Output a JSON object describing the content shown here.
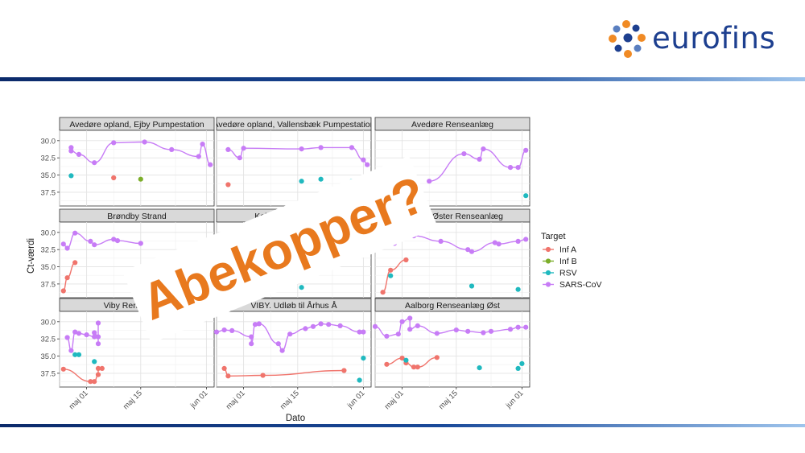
{
  "brand": {
    "name": "eurofins",
    "colors": {
      "logo_text": "#1d3f8f",
      "dot_orange": "#f08a24",
      "dot_navy": "#1d3f8f",
      "dot_blue": "#5a7fc0"
    }
  },
  "overlay_text": "Abekopper?",
  "overlay_color": "#e8791e",
  "chart_data": {
    "type": "scatter",
    "xlabel": "Dato",
    "ylabel": "Ct-værdi",
    "x_domain": [
      "2022-04-24",
      "2022-06-03"
    ],
    "xticks": [
      {
        "date": "2022-05-01",
        "label": "maj 01"
      },
      {
        "date": "2022-05-15",
        "label": "maj 15"
      },
      {
        "date": "2022-06-01",
        "label": "jun 01"
      }
    ],
    "ylim": [
      39.5,
      28.5
    ],
    "y_reversed": true,
    "yticks": [
      "30.0",
      "32.5",
      "35.0",
      "37.5"
    ],
    "legend": {
      "title": "Target",
      "placement": "right",
      "items": [
        {
          "name": "Inf A",
          "color": "#f0746c"
        },
        {
          "name": "Inf B",
          "color": "#7cae2a"
        },
        {
          "name": "RSV",
          "color": "#20b9bf"
        },
        {
          "name": "SARS-CoV",
          "color": "#c77cf6"
        }
      ]
    },
    "facets": [
      {
        "title": "Avedøre opland, Ejby Pumpestation",
        "series": [
          {
            "target": "SARS-CoV",
            "trend": true,
            "points": [
              [
                "2022-04-27",
                31.0
              ],
              [
                "2022-04-27",
                31.5
              ],
              [
                "2022-04-29",
                32.0
              ],
              [
                "2022-05-03",
                33.2
              ],
              [
                "2022-05-08",
                30.3
              ],
              [
                "2022-05-16",
                30.2
              ],
              [
                "2022-05-23",
                31.3
              ],
              [
                "2022-05-30",
                32.3
              ],
              [
                "2022-05-31",
                30.5
              ],
              [
                "2022-06-02",
                33.5
              ]
            ]
          },
          {
            "target": "RSV",
            "trend": false,
            "points": [
              [
                "2022-04-27",
                35.1
              ]
            ]
          },
          {
            "target": "Inf A",
            "trend": false,
            "points": [
              [
                "2022-05-08",
                35.4
              ]
            ]
          },
          {
            "target": "Inf B",
            "trend": false,
            "points": [
              [
                "2022-05-15",
                35.6
              ]
            ]
          }
        ]
      },
      {
        "title": "Avedøre opland, Vallensbæk Pumpestation",
        "series": [
          {
            "target": "SARS-CoV",
            "trend": true,
            "points": [
              [
                "2022-04-27",
                31.3
              ],
              [
                "2022-04-30",
                32.5
              ],
              [
                "2022-05-01",
                31.1
              ],
              [
                "2022-05-16",
                31.2
              ],
              [
                "2022-05-21",
                31.0
              ],
              [
                "2022-05-29",
                31.0
              ],
              [
                "2022-06-01",
                32.8
              ],
              [
                "2022-06-02",
                33.5
              ]
            ]
          },
          {
            "target": "Inf A",
            "trend": false,
            "points": [
              [
                "2022-04-27",
                36.4
              ]
            ]
          },
          {
            "target": "RSV",
            "trend": false,
            "points": [
              [
                "2022-05-16",
                35.9
              ],
              [
                "2022-05-21",
                35.6
              ],
              [
                "2022-05-29",
                35.9
              ]
            ]
          }
        ]
      },
      {
        "title": "Avedøre Renseanlæg",
        "series": [
          {
            "target": "SARS-CoV",
            "trend": true,
            "points": [
              [
                "2022-05-08",
                35.9
              ],
              [
                "2022-05-17",
                31.9
              ],
              [
                "2022-05-21",
                32.7
              ],
              [
                "2022-05-22",
                31.2
              ],
              [
                "2022-05-29",
                33.9
              ],
              [
                "2022-05-31",
                33.9
              ],
              [
                "2022-06-02",
                31.4
              ]
            ]
          },
          {
            "target": "RSV",
            "trend": false,
            "points": [
              [
                "2022-06-02",
                38.0
              ]
            ]
          }
        ]
      },
      {
        "title": "Brøndby Strand",
        "series": [
          {
            "target": "SARS-CoV",
            "trend": true,
            "points": [
              [
                "2022-04-25",
                31.7
              ],
              [
                "2022-04-26",
                32.3
              ],
              [
                "2022-04-28",
                30.1
              ],
              [
                "2022-05-02",
                31.3
              ],
              [
                "2022-05-03",
                31.8
              ],
              [
                "2022-05-08",
                31.0
              ],
              [
                "2022-05-09",
                31.2
              ],
              [
                "2022-05-15",
                31.6
              ]
            ]
          },
          {
            "target": "Inf A",
            "trend": true,
            "points": [
              [
                "2022-04-25",
                38.5
              ],
              [
                "2022-04-26",
                36.6
              ],
              [
                "2022-04-28",
                34.4
              ]
            ]
          }
        ]
      },
      {
        "title": "Kolding Renseanlæg",
        "series": [
          {
            "target": "SARS-CoV",
            "trend": true,
            "points": []
          },
          {
            "target": "RSV",
            "trend": false,
            "points": [
              [
                "2022-05-16",
                38.0
              ]
            ]
          }
        ]
      },
      {
        "title": "Kolding Øster Renseanlæg",
        "series": [
          {
            "target": "SARS-CoV",
            "trend": true,
            "points": [
              [
                "2022-04-26",
                31.8
              ],
              [
                "2022-04-29",
                31.6
              ],
              [
                "2022-05-01",
                30.8
              ],
              [
                "2022-05-04",
                30.5
              ],
              [
                "2022-05-11",
                31.3
              ],
              [
                "2022-05-18",
                32.5
              ],
              [
                "2022-05-19",
                32.8
              ],
              [
                "2022-05-25",
                31.5
              ],
              [
                "2022-05-26",
                31.7
              ],
              [
                "2022-05-31",
                31.3
              ],
              [
                "2022-06-02",
                31.0
              ]
            ]
          },
          {
            "target": "Inf A",
            "trend": true,
            "points": [
              [
                "2022-04-26",
                38.7
              ],
              [
                "2022-04-28",
                35.5
              ],
              [
                "2022-05-02",
                34.0
              ]
            ]
          },
          {
            "target": "RSV",
            "trend": false,
            "points": [
              [
                "2022-04-28",
                36.3
              ],
              [
                "2022-05-19",
                37.8
              ],
              [
                "2022-05-31",
                38.3
              ]
            ]
          }
        ]
      },
      {
        "title": "Viby Renseanlæg",
        "series": [
          {
            "target": "SARS-CoV",
            "trend": true,
            "points": [
              [
                "2022-04-26",
                32.3
              ],
              [
                "2022-04-28",
                31.5
              ],
              [
                "2022-04-29",
                31.7
              ],
              [
                "2022-05-01",
                31.9
              ],
              [
                "2022-05-03",
                32.2
              ],
              [
                "2022-05-03",
                31.6
              ],
              [
                "2022-05-04",
                32.2
              ],
              [
                "2022-05-04",
                30.2
              ],
              [
                "2022-05-04",
                33.2
              ],
              [
                "2022-04-27",
                34.2
              ]
            ]
          },
          {
            "target": "RSV",
            "trend": false,
            "points": [
              [
                "2022-04-28",
                34.8
              ],
              [
                "2022-04-29",
                34.8
              ],
              [
                "2022-05-03",
                35.8
              ]
            ]
          },
          {
            "target": "Inf A",
            "trend": true,
            "points": [
              [
                "2022-04-25",
                36.9
              ],
              [
                "2022-05-02",
                38.7
              ],
              [
                "2022-05-03",
                38.7
              ],
              [
                "2022-05-04",
                37.7
              ],
              [
                "2022-05-04",
                36.8
              ],
              [
                "2022-05-05",
                36.8
              ]
            ]
          }
        ]
      },
      {
        "title": "VIBY. Udløb til Århus Å",
        "series": [
          {
            "target": "SARS-CoV",
            "trend": true,
            "points": [
              [
                "2022-04-24",
                31.5
              ],
              [
                "2022-04-26",
                31.2
              ],
              [
                "2022-04-28",
                31.3
              ],
              [
                "2022-05-03",
                32.2
              ],
              [
                "2022-05-03",
                33.2
              ],
              [
                "2022-05-04",
                30.4
              ],
              [
                "2022-05-05",
                30.3
              ],
              [
                "2022-05-10",
                33.2
              ],
              [
                "2022-05-11",
                34.2
              ],
              [
                "2022-05-13",
                31.8
              ],
              [
                "2022-05-17",
                31.0
              ],
              [
                "2022-05-19",
                30.7
              ],
              [
                "2022-05-21",
                30.3
              ],
              [
                "2022-05-23",
                30.4
              ],
              [
                "2022-05-26",
                30.6
              ],
              [
                "2022-05-31",
                31.5
              ],
              [
                "2022-06-01",
                31.5
              ]
            ]
          },
          {
            "target": "Inf A",
            "trend": true,
            "points": [
              [
                "2022-04-26",
                36.8
              ],
              [
                "2022-04-27",
                37.9
              ],
              [
                "2022-05-06",
                37.8
              ],
              [
                "2022-05-27",
                37.1
              ]
            ]
          },
          {
            "target": "RSV",
            "trend": false,
            "points": [
              [
                "2022-05-31",
                38.5
              ],
              [
                "2022-06-01",
                35.3
              ]
            ]
          }
        ]
      },
      {
        "title": "Aalborg Renseanlæg Øst",
        "series": [
          {
            "target": "SARS-CoV",
            "trend": true,
            "points": [
              [
                "2022-04-24",
                30.7
              ],
              [
                "2022-04-27",
                32.1
              ],
              [
                "2022-04-30",
                31.8
              ],
              [
                "2022-05-01",
                30.0
              ],
              [
                "2022-05-03",
                29.5
              ],
              [
                "2022-05-03",
                31.1
              ],
              [
                "2022-05-05",
                30.6
              ],
              [
                "2022-05-10",
                31.7
              ],
              [
                "2022-05-15",
                31.2
              ],
              [
                "2022-05-18",
                31.4
              ],
              [
                "2022-05-22",
                31.6
              ],
              [
                "2022-05-24",
                31.4
              ],
              [
                "2022-05-29",
                31.1
              ],
              [
                "2022-05-31",
                30.8
              ],
              [
                "2022-06-02",
                30.8
              ]
            ]
          },
          {
            "target": "Inf A",
            "trend": true,
            "points": [
              [
                "2022-04-27",
                36.2
              ],
              [
                "2022-05-01",
                35.3
              ],
              [
                "2022-05-02",
                36.0
              ],
              [
                "2022-05-04",
                36.6
              ],
              [
                "2022-05-05",
                36.6
              ],
              [
                "2022-05-10",
                35.2
              ]
            ]
          },
          {
            "target": "RSV",
            "trend": false,
            "points": [
              [
                "2022-05-02",
                35.6
              ],
              [
                "2022-05-21",
                36.7
              ],
              [
                "2022-05-31",
                36.8
              ],
              [
                "2022-06-01",
                36.1
              ]
            ]
          }
        ]
      }
    ]
  }
}
